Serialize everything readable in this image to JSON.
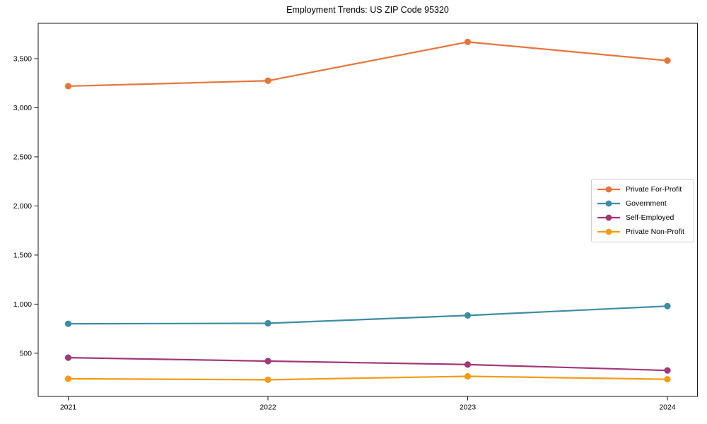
{
  "page": {
    "background_color": "#ffffff",
    "text_color": "#000000",
    "axis_color": "#1a1a1a",
    "legend_border_color": "#cccccc"
  },
  "chart_data": {
    "type": "line",
    "title": "Employment Trends: US ZIP Code 95320",
    "xlabel": "",
    "ylabel": "",
    "categories": [
      "2021",
      "2022",
      "2023",
      "2024"
    ],
    "series": [
      {
        "name": "Private For-Profit",
        "color": "#e8743b",
        "values": [
          3220,
          3275,
          3670,
          3480
        ]
      },
      {
        "name": "Government",
        "color": "#3d8ca6",
        "values": [
          800,
          805,
          885,
          980
        ]
      },
      {
        "name": "Self-Employed",
        "color": "#a23779",
        "values": [
          455,
          420,
          385,
          325
        ]
      },
      {
        "name": "Private Non-Profit",
        "color": "#f59b14",
        "values": [
          240,
          230,
          265,
          235
        ]
      }
    ],
    "ylim": [
      60,
      3860
    ],
    "yticks": [
      500,
      1000,
      1500,
      2000,
      2500,
      3000,
      3500
    ],
    "ytick_labels": [
      "500",
      "1,000",
      "1,500",
      "2,000",
      "2,500",
      "3,000",
      "3,500"
    ],
    "grid": false,
    "marker": "circle",
    "legend_position": "right-inside"
  }
}
